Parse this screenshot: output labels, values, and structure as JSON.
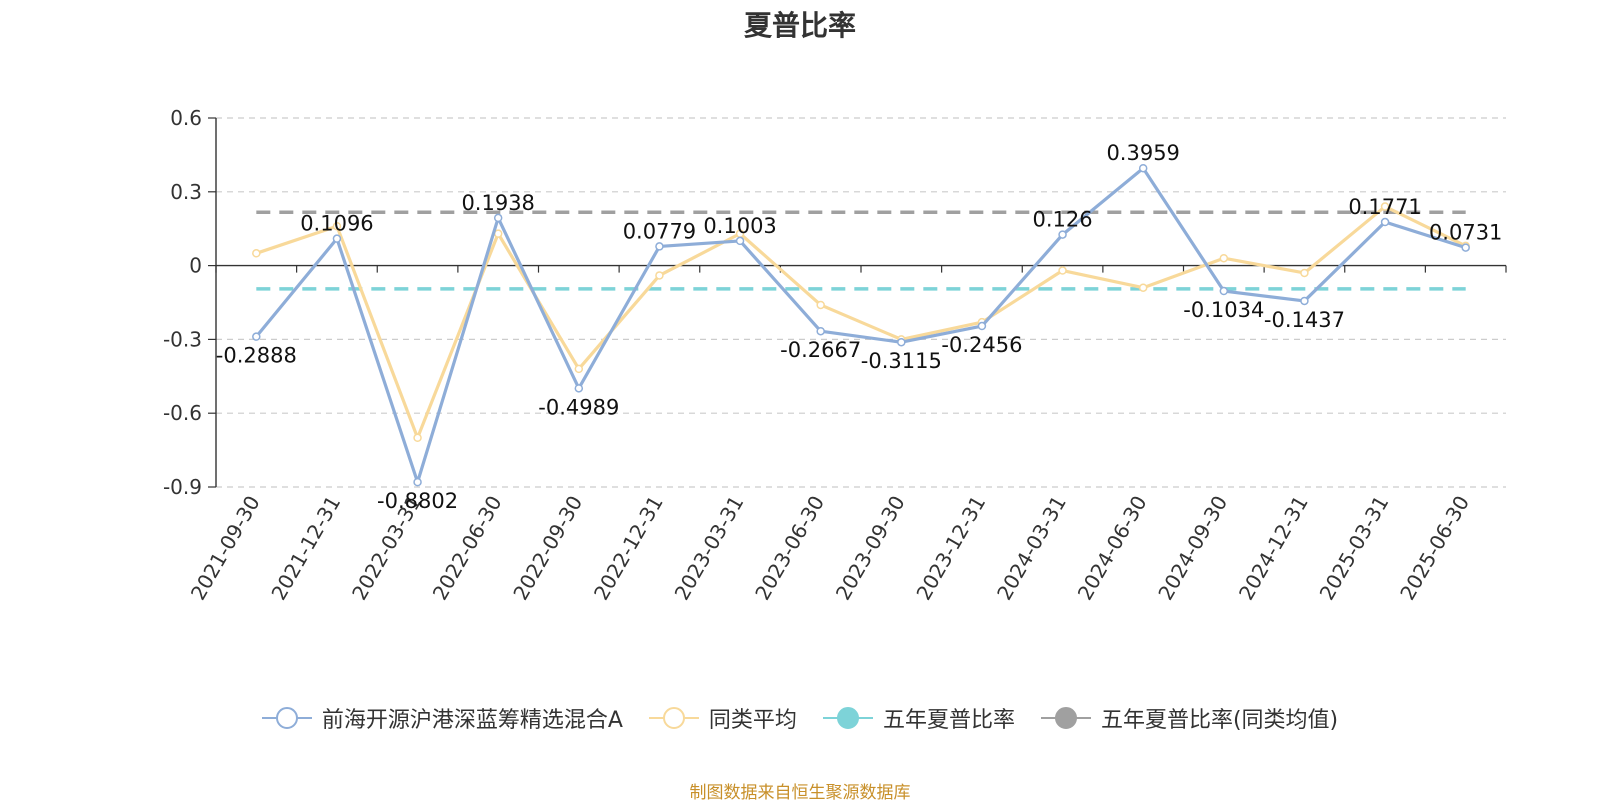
{
  "title": "夏普比率",
  "source_note": "制图数据来自恒生聚源数据库",
  "colors": {
    "fund": "#8eadd8",
    "peer_avg": "#f8d99a",
    "five_year": "#7dd3d8",
    "five_year_peer": "#a0a0a0",
    "axis": "#333333",
    "grid": "#cccccc"
  },
  "legend": [
    {
      "label": "前海开源沪港深蓝筹精选混合A",
      "color": "#8eadd8",
      "marker": "hollow-circle"
    },
    {
      "label": "同类平均",
      "color": "#f8d99a",
      "marker": "hollow-circle"
    },
    {
      "label": "五年夏普比率",
      "color": "#7dd3d8",
      "marker": "filled-circle"
    },
    {
      "label": "五年夏普比率(同类均值)",
      "color": "#a0a0a0",
      "marker": "filled-circle"
    }
  ],
  "chart_data": {
    "type": "line",
    "title": "夏普比率",
    "x": [
      "2021-09-30",
      "2021-12-31",
      "2022-03-31",
      "2022-06-30",
      "2022-09-30",
      "2022-12-31",
      "2023-03-31",
      "2023-06-30",
      "2023-09-30",
      "2023-12-31",
      "2024-03-31",
      "2024-06-30",
      "2024-09-30",
      "2024-12-31",
      "2025-03-31",
      "2025-06-30"
    ],
    "ylim": [
      -0.9,
      0.6
    ],
    "yticks": [
      0.6,
      0.3,
      0,
      -0.3,
      -0.6,
      -0.9
    ],
    "ytick_labels": [
      "0.6",
      "0.3",
      "0",
      "-0.3",
      "-0.6",
      "-0.9"
    ],
    "grid": true,
    "legend_position": "bottom",
    "series": [
      {
        "name": "前海开源沪港深蓝筹精选混合A",
        "values": [
          -0.2888,
          0.1096,
          -0.8802,
          0.1938,
          -0.4989,
          0.0779,
          0.1003,
          -0.2667,
          -0.3115,
          -0.2456,
          0.126,
          0.3959,
          -0.1034,
          -0.1437,
          0.1771,
          0.0731
        ],
        "labels": [
          "-0.2888",
          "0.1096",
          "-0.8802",
          "0.1938",
          "-0.4989",
          "0.0779",
          "0.1003",
          "-0.2667",
          "-0.3115",
          "-0.2456",
          "0.126",
          "0.3959",
          "-0.1034",
          "-0.1437",
          "0.1771",
          "0.0731"
        ]
      },
      {
        "name": "同类平均",
        "values": [
          0.05,
          0.16,
          -0.7,
          0.13,
          -0.42,
          -0.04,
          0.13,
          -0.16,
          -0.3,
          -0.23,
          -0.02,
          -0.09,
          0.03,
          -0.03,
          0.24,
          0.08
        ]
      },
      {
        "name": "五年夏普比率",
        "constant": -0.0944,
        "style": "dashed"
      },
      {
        "name": "五年夏普比率(同类均值)",
        "constant": 0.2171,
        "style": "dashed"
      }
    ]
  }
}
